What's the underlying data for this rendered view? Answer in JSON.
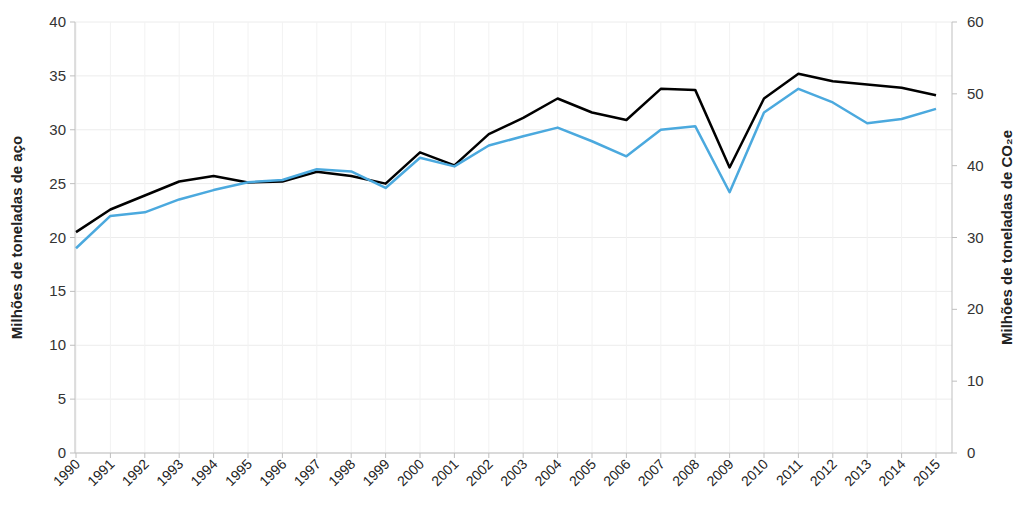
{
  "chart_data": {
    "type": "line",
    "categories": [
      "1990",
      "1991",
      "1992",
      "1993",
      "1994",
      "1995",
      "1996",
      "1997",
      "1998",
      "1999",
      "2000",
      "2001",
      "2002",
      "2003",
      "2004",
      "2005",
      "2006",
      "2007",
      "2008",
      "2009",
      "2010",
      "2011",
      "2012",
      "2013",
      "2014",
      "2015"
    ],
    "series": [
      {
        "color": "#000000",
        "values": [
          20.5,
          22.6,
          23.9,
          25.2,
          25.7,
          25.1,
          25.2,
          26.1,
          25.7,
          25.0,
          27.9,
          26.7,
          29.6,
          31.1,
          32.9,
          31.6,
          30.9,
          33.8,
          33.7,
          26.5,
          32.9,
          35.2,
          34.5,
          34.2,
          33.9,
          33.2
        ]
      },
      {
        "color": "#4ba9de",
        "axis": "y2",
        "values": [
          28.5,
          33.0,
          33.5,
          35.3,
          36.6,
          37.7,
          38.0,
          39.5,
          39.2,
          36.9,
          41.1,
          39.9,
          42.8,
          44.1,
          45.3,
          43.4,
          41.3,
          45.0,
          45.5,
          36.3,
          47.4,
          50.7,
          48.8,
          45.9,
          46.5,
          47.9
        ]
      }
    ],
    "y_label": "Milhões de toneladas de aço",
    "y2_label": "Milhões de toneladas de CO₂e",
    "ylim": [
      0,
      40
    ],
    "yticks": [
      0,
      5,
      10,
      15,
      20,
      25,
      30,
      35,
      40
    ],
    "y2lim": [
      0,
      60
    ],
    "y2ticks": [
      0,
      10,
      20,
      30,
      40,
      50,
      60
    ],
    "grid": true
  }
}
